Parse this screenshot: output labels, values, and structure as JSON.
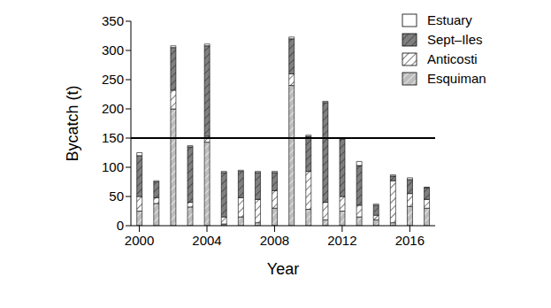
{
  "chart_data": {
    "type": "bar",
    "stacked": true,
    "x_label": "Year",
    "y_label": "Bycatch (t)",
    "categories": [
      2000,
      null,
      null,
      null,
      2004,
      null,
      null,
      null,
      2008,
      null,
      null,
      null,
      2012,
      null,
      null,
      null,
      2016,
      null
    ],
    "series": [
      {
        "name": "Estuary",
        "color": "#ffffff",
        "values": [
          5,
          2,
          3,
          2,
          3,
          2,
          2,
          2,
          2,
          3,
          2,
          2,
          2,
          7,
          2,
          2,
          3,
          1
        ]
      },
      {
        "name": "Sept–Iles",
        "color": "#808080",
        "values": [
          70,
          27,
          73,
          95,
          155,
          76,
          45,
          46,
          31,
          60,
          60,
          171,
          98,
          68,
          17,
          8,
          24,
          20
        ]
      },
      {
        "name": "Anticosti",
        "color": "#ffffff",
        "values": [
          25,
          10,
          32,
          8,
          10,
          12,
          33,
          40,
          30,
          20,
          65,
          30,
          25,
          20,
          8,
          72,
          22,
          15
        ]
      },
      {
        "name": "Esquiman",
        "color": "#bdbdbd",
        "values": [
          25,
          38,
          200,
          32,
          143,
          3,
          15,
          5,
          30,
          240,
          28,
          10,
          25,
          15,
          10,
          5,
          33,
          30
        ]
      }
    ],
    "hline": 150,
    "ylim": [
      0,
      350
    ],
    "yticks": [
      0,
      50,
      100,
      150,
      200,
      250,
      300,
      350
    ],
    "grid": false,
    "legend": "upper right"
  }
}
